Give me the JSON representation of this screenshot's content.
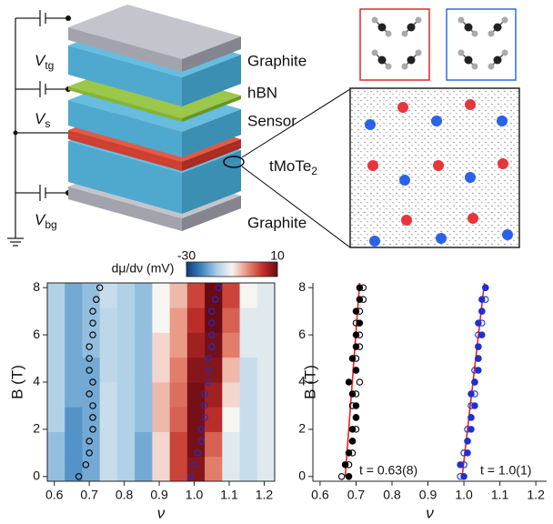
{
  "diagram": {
    "voltages": [
      {
        "main": "V",
        "sub": "tg"
      },
      {
        "main": "V",
        "sub": "s"
      },
      {
        "main": "V",
        "sub": "bg"
      }
    ],
    "layers": [
      {
        "text": "Graphite"
      },
      {
        "text": "hBN"
      },
      {
        "text": "Sensor"
      },
      {
        "text": "tMoTe",
        "sub": "2"
      },
      {
        "text": "Graphite"
      }
    ]
  },
  "chart_data": [
    {
      "type": "heatmap",
      "colorbar_label": "dμ/dν (mV)",
      "clim": [
        -30,
        10
      ],
      "cticks": [
        -30,
        10
      ],
      "colormap": [
        "#0b3d7a",
        "#3f84c0",
        "#a9cde6",
        "#f7f5f2",
        "#e8907a",
        "#c3312b",
        "#6a0a12"
      ],
      "xlabel": "ν",
      "ylabel": "B (T)",
      "xlim": [
        0.58,
        1.23
      ],
      "ylim": [
        -0.2,
        8.2
      ],
      "xticks": [
        0.6,
        0.7,
        0.8,
        0.9,
        {
          "value": 1,
          "label": "1.0"
        },
        1.1,
        1.2
      ],
      "yticks": [
        0,
        2,
        4,
        6,
        8
      ],
      "x_edges": [
        0.58,
        0.63,
        0.68,
        0.73,
        0.78,
        0.83,
        0.88,
        0.93,
        0.98,
        1.03,
        1.08,
        1.13,
        1.18,
        1.23
      ],
      "y_edges": [
        -0.2,
        0.85,
        1.9,
        2.95,
        4.0,
        5.05,
        6.1,
        7.15,
        8.2
      ],
      "z": [
        [
          -18,
          -22,
          -20,
          -14,
          -16,
          -20,
          -8,
          2,
          8,
          -2,
          -12,
          -14,
          -12
        ],
        [
          -18,
          -22,
          -20,
          -14,
          -16,
          -20,
          -8,
          2,
          9,
          0,
          -12,
          -14,
          -12
        ],
        [
          -16,
          -22,
          -20,
          -14,
          -16,
          -18,
          -6,
          0,
          9,
          4,
          -10,
          -14,
          -12
        ],
        [
          -16,
          -20,
          -20,
          -14,
          -16,
          -18,
          -6,
          -1,
          9,
          6,
          -8,
          -14,
          -12
        ],
        [
          -16,
          -20,
          -20,
          -15,
          -16,
          -18,
          -8,
          -2,
          8,
          8,
          -6,
          -14,
          -12
        ],
        [
          -16,
          -20,
          -18,
          -15,
          -16,
          -18,
          -8,
          -4,
          6,
          9,
          -2,
          -12,
          -12
        ],
        [
          -16,
          -20,
          -18,
          -15,
          -16,
          -18,
          -10,
          -4,
          4,
          10,
          0,
          -12,
          -12
        ],
        [
          -16,
          -20,
          -18,
          -14,
          -16,
          -18,
          -10,
          -6,
          2,
          10,
          2,
          -10,
          -12
        ]
      ],
      "series": [
        {
          "color": "#000000",
          "marker": "open",
          "x": [
            0.67,
            0.69,
            0.7,
            0.7,
            0.71,
            0.71,
            0.71,
            0.7,
            0.71,
            0.7,
            0.7,
            0.7,
            0.71,
            0.71,
            0.71,
            0.72,
            0.73
          ],
          "y": [
            0,
            0.5,
            1,
            1.5,
            2,
            2.5,
            3,
            3.5,
            4,
            4.5,
            5,
            5.5,
            6,
            6.5,
            7,
            7.5,
            8
          ]
        },
        {
          "color": "#1f2fd0",
          "marker": "open",
          "x": [
            0.99,
            1.0,
            1.01,
            1.02,
            1.02,
            1.03,
            1.03,
            1.03,
            1.04,
            1.04,
            1.04,
            1.05,
            1.05,
            1.05,
            1.05,
            1.06,
            1.07
          ],
          "y": [
            0,
            0.5,
            1,
            1.5,
            2,
            2.5,
            3,
            3.5,
            4,
            4.5,
            5,
            5.5,
            6,
            6.5,
            7,
            7.5,
            8
          ]
        }
      ]
    },
    {
      "type": "scatter",
      "xlabel": "ν",
      "ylabel": "B (T)",
      "xlim": [
        0.58,
        1.23
      ],
      "ylim": [
        -0.2,
        8.2
      ],
      "xticks": [
        0.6,
        0.7,
        0.8,
        0.9,
        {
          "value": 1,
          "label": "1.0"
        },
        1.1,
        1.2
      ],
      "yticks": [
        0,
        2,
        4,
        6,
        8
      ],
      "series": [
        {
          "color": "#e8231c",
          "type": "line",
          "x": [
            0.67,
            0.71
          ],
          "y": [
            0,
            8.2
          ]
        },
        {
          "color": "#e8231c",
          "type": "line",
          "x": [
            0.995,
            1.057
          ],
          "y": [
            0,
            8.2
          ]
        },
        {
          "color": "#000000",
          "marker": "filled",
          "x": [
            0.68,
            0.67,
            0.68,
            0.69,
            0.69,
            0.7,
            0.7,
            0.69,
            0.68,
            0.7,
            0.69,
            0.7,
            0.7,
            0.71,
            0.7,
            0.71,
            0.71
          ],
          "y": [
            0,
            0.5,
            1,
            1.5,
            2,
            2.5,
            3,
            3.5,
            4,
            4.5,
            5,
            5.5,
            6,
            6.5,
            7,
            7.5,
            8
          ]
        },
        {
          "color": "#000000",
          "marker": "open",
          "x": [
            0.66,
            0.68,
            0.69,
            0.69,
            0.7,
            0.7,
            0.69,
            0.7,
            0.71,
            0.7,
            0.7,
            0.71,
            0.71,
            0.7,
            0.71,
            0.72,
            0.72
          ],
          "y": [
            0,
            0.5,
            1,
            1.5,
            2,
            2.5,
            3,
            3.5,
            4,
            4.5,
            5,
            5.5,
            6,
            6.5,
            7,
            7.5,
            8
          ]
        },
        {
          "color": "#1f2fd0",
          "marker": "filled",
          "x": [
            1.0,
            0.99,
            1.01,
            1.01,
            1.02,
            1.02,
            1.03,
            1.02,
            1.03,
            1.04,
            1.04,
            1.04,
            1.05,
            1.04,
            1.05,
            1.05,
            1.06
          ],
          "y": [
            0,
            0.5,
            1,
            1.5,
            2,
            2.5,
            3,
            3.5,
            4,
            4.5,
            5,
            5.5,
            6,
            6.5,
            7,
            7.5,
            8
          ]
        },
        {
          "color": "#1f2fd0",
          "marker": "open",
          "x": [
            0.99,
            1.0,
            1.0,
            1.01,
            1.01,
            1.02,
            1.02,
            1.03,
            1.03,
            1.03,
            1.04,
            1.04,
            1.04,
            1.05,
            1.05,
            1.06,
            1.06
          ],
          "y": [
            0,
            0.5,
            1,
            1.5,
            2,
            2.5,
            3,
            3.5,
            4,
            4.5,
            5,
            5.5,
            6,
            6.5,
            7,
            7.5,
            8
          ]
        }
      ],
      "annotations": [
        "t = 0.63(8)",
        "t = 1.0(1)"
      ]
    }
  ]
}
